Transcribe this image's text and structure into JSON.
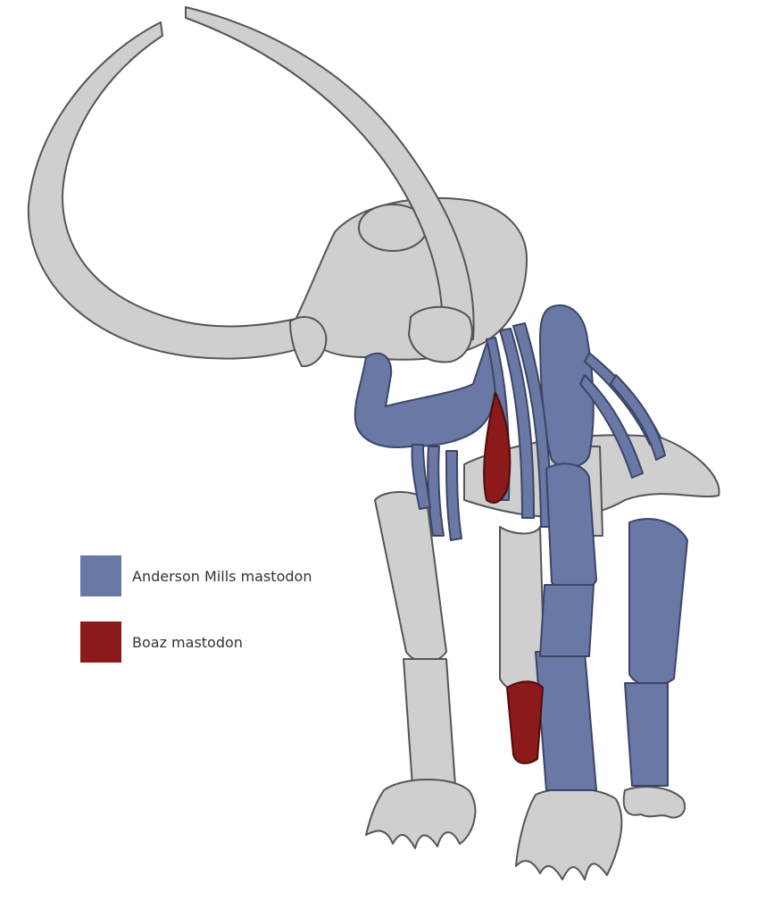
{
  "legend": {
    "items": [
      {
        "label": "Anderson Mills mastodon",
        "color": "#6a78a6"
      },
      {
        "label": "Boaz mastodon",
        "color": "#8c1a1a"
      }
    ]
  },
  "palette": {
    "skeleton_gray": "#cfcfcf",
    "outline": "#555555",
    "anderson_blue": "#6a78a6",
    "boaz_red": "#8c1a1a"
  }
}
